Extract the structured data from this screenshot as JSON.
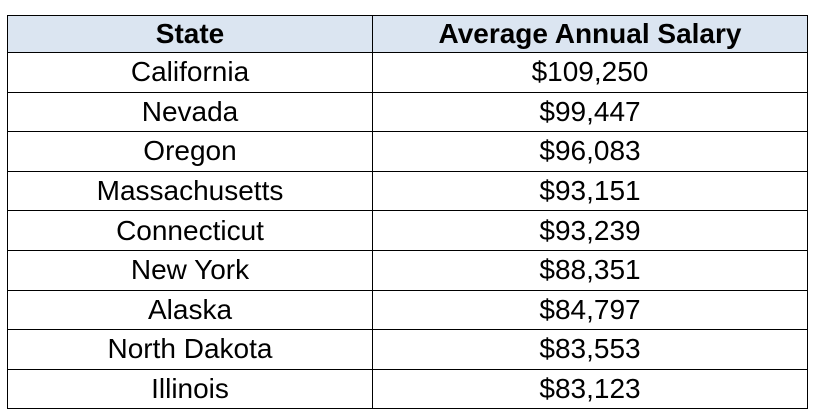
{
  "table": {
    "header": [
      "State",
      "Average Annual Salary"
    ],
    "rows": [
      [
        "California",
        "$109,250"
      ],
      [
        "Nevada",
        "$99,447"
      ],
      [
        "Oregon",
        "$96,083"
      ],
      [
        "Massachusetts",
        "$93,151"
      ],
      [
        "Connecticut",
        "$93,239"
      ],
      [
        "New York",
        "$88,351"
      ],
      [
        "Alaska",
        "$84,797"
      ],
      [
        "North Dakota",
        "$83,553"
      ],
      [
        "Illinois",
        "$83,123"
      ]
    ]
  }
}
